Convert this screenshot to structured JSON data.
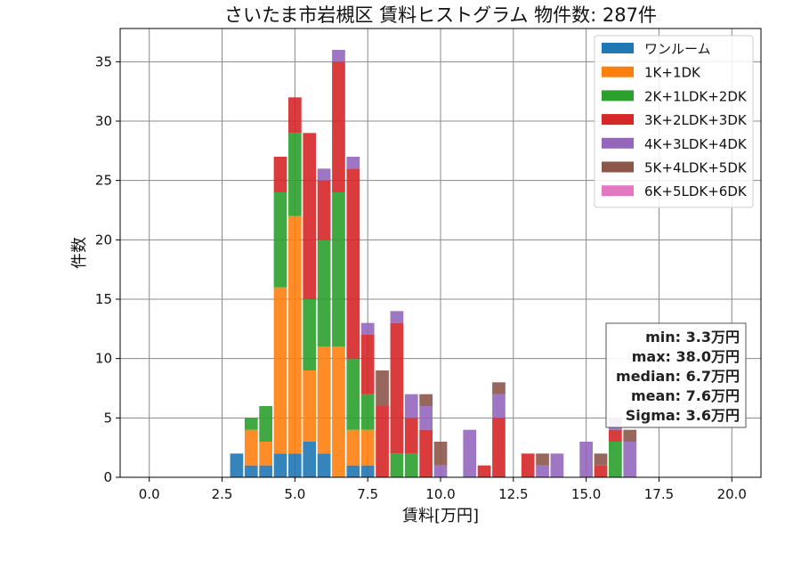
{
  "chart_data": {
    "type": "bar",
    "stacked": true,
    "title": "さいたま市岩槻区 賃料ヒストグラム  物件数: 287件",
    "xlabel": "賃料[万円]",
    "ylabel": "件数",
    "xlim": [
      -1,
      21
    ],
    "ylim": [
      0,
      37.8
    ],
    "grid": true,
    "legend_position": "top-right",
    "bin_width": 0.45,
    "x_ticks": [
      0,
      2.5,
      5,
      7.5,
      10,
      12.5,
      15,
      17.5,
      20
    ],
    "x_tick_labels": [
      "0.0",
      "2.5",
      "5.0",
      "7.5",
      "10.0",
      "12.5",
      "15.0",
      "17.5",
      "20.0"
    ],
    "y_ticks": [
      0,
      5,
      10,
      15,
      20,
      25,
      30,
      35
    ],
    "y_tick_labels": [
      "0",
      "5",
      "10",
      "15",
      "20",
      "25",
      "30",
      "35"
    ],
    "x": [
      3.0,
      3.5,
      4.0,
      4.5,
      5.0,
      5.5,
      6.0,
      6.5,
      7.0,
      7.5,
      8.0,
      8.5,
      9.0,
      9.5,
      10.0,
      11.0,
      11.5,
      12.0,
      13.0,
      13.5,
      14.0,
      15.0,
      15.5,
      16.0,
      16.5
    ],
    "series": [
      {
        "name": "ワンルーム",
        "color": "#1f77b4",
        "values": [
          2,
          1,
          1,
          2,
          2,
          3,
          2,
          0,
          1,
          1,
          0,
          0,
          0,
          0,
          0,
          0,
          0,
          0,
          0,
          0,
          0,
          0,
          0,
          0,
          0
        ]
      },
      {
        "name": "1K+1DK",
        "color": "#ff7f0e",
        "values": [
          0,
          3,
          2,
          14,
          20,
          6,
          9,
          11,
          3,
          3,
          0,
          0,
          0,
          0,
          0,
          0,
          0,
          0,
          0,
          0,
          0,
          0,
          0,
          0,
          0
        ]
      },
      {
        "name": "2K+1LDK+2DK",
        "color": "#2ca02c",
        "values": [
          0,
          1,
          3,
          8,
          7,
          6,
          9,
          13,
          6,
          3,
          0,
          2,
          2,
          0,
          0,
          0,
          0,
          0,
          0,
          0,
          0,
          0,
          0,
          3,
          0
        ]
      },
      {
        "name": "3K+2LDK+3DK",
        "color": "#d62728",
        "values": [
          0,
          0,
          0,
          3,
          3,
          14,
          5,
          11,
          16,
          5,
          6,
          11,
          3,
          4,
          0,
          0,
          1,
          5,
          2,
          0,
          0,
          0,
          1,
          1,
          0
        ]
      },
      {
        "name": "4K+3LDK+4DK",
        "color": "#9467bd",
        "values": [
          0,
          0,
          0,
          0,
          0,
          0,
          1,
          1,
          1,
          1,
          0,
          1,
          2,
          2,
          1,
          4,
          0,
          2,
          0,
          1,
          2,
          3,
          0,
          1,
          3
        ]
      },
      {
        "name": "5K+4LDK+5DK",
        "color": "#8c564b",
        "values": [
          0,
          0,
          0,
          0,
          0,
          0,
          0,
          0,
          0,
          0,
          3,
          0,
          0,
          1,
          2,
          0,
          0,
          1,
          0,
          1,
          0,
          0,
          1,
          0,
          1
        ]
      },
      {
        "name": "6K+5LDK+6DK",
        "color": "#e377c2",
        "values": [
          0,
          0,
          0,
          0,
          0,
          0,
          0,
          0,
          0,
          0,
          0,
          0,
          0,
          0,
          0,
          0,
          0,
          0,
          0,
          0,
          0,
          0,
          0,
          0,
          0
        ]
      }
    ],
    "stats_lines": [
      "min: 3.3万円",
      "max: 38.0万円",
      "median: 6.7万円",
      "mean: 7.6万円",
      "Sigma: 3.6万円"
    ]
  }
}
